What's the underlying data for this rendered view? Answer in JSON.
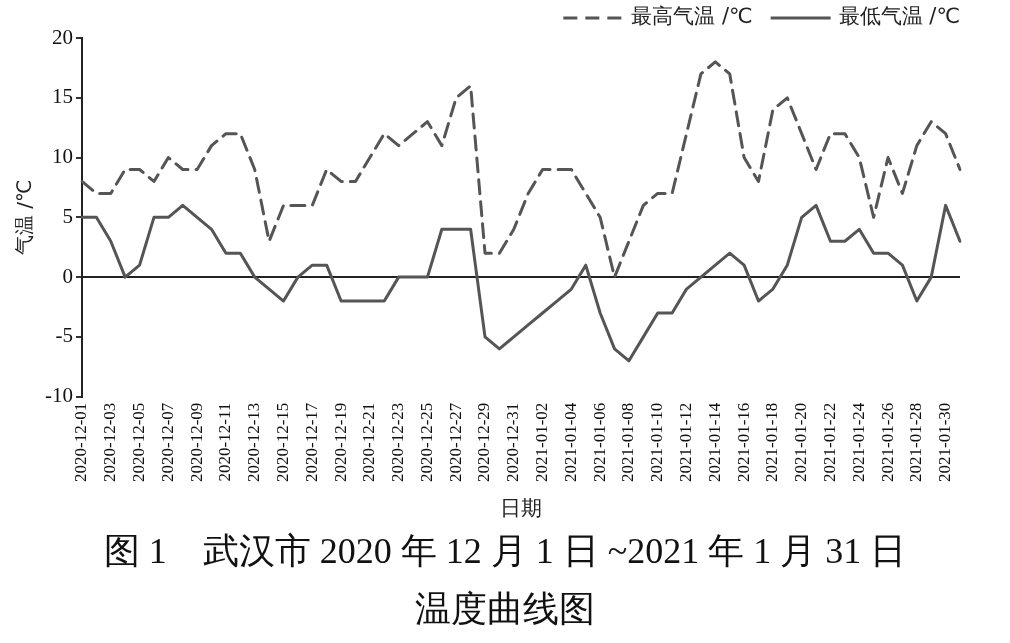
{
  "chart_data": {
    "type": "line",
    "title": "图 1　武汉市 2020 年 12 月 1 日 ~2021 年 1 月 31 日温度曲线图",
    "xlabel": "日期",
    "ylabel": "气温 /℃",
    "categories": [
      "2020-12-01",
      null,
      "2020-12-03",
      null,
      "2020-12-05",
      null,
      "2020-12-07",
      null,
      "2020-12-09",
      null,
      "2020-12-11",
      null,
      "2020-12-13",
      null,
      "2020-12-15",
      null,
      "2020-12-17",
      null,
      "2020-12-19",
      null,
      "2020-12-21",
      null,
      "2020-12-23",
      null,
      "2020-12-25",
      null,
      "2020-12-27",
      null,
      "2020-12-29",
      null,
      "2020-12-31",
      null,
      "2021-01-02",
      null,
      "2021-01-04",
      null,
      "2021-01-06",
      null,
      "2021-01-08",
      null,
      "2021-01-10",
      null,
      "2021-01-12",
      null,
      "2021-01-14",
      null,
      "2021-01-16",
      null,
      "2021-01-18",
      null,
      "2021-01-20",
      null,
      "2021-01-22",
      null,
      "2021-01-24",
      null,
      "2021-01-26",
      null,
      "2021-01-28",
      null,
      "2021-01-30",
      null
    ],
    "series": [
      {
        "name": "最高气温 /℃",
        "color": "#555555",
        "line_style": "dashed",
        "values": [
          8,
          7,
          7,
          9,
          9,
          8,
          10,
          9,
          9,
          11,
          12,
          12,
          9,
          3,
          6,
          6,
          6,
          9,
          8,
          8,
          10,
          12,
          11,
          12,
          13,
          11,
          15,
          16,
          2,
          2,
          4,
          7,
          9,
          9,
          9,
          7,
          5,
          0,
          3,
          6,
          7,
          7,
          12,
          17,
          18,
          17,
          10,
          8,
          14,
          15,
          12,
          9,
          12,
          12,
          10,
          5,
          10,
          7,
          11,
          13,
          12,
          9
        ]
      },
      {
        "name": "最低气温 /℃",
        "color": "#555555",
        "line_style": "solid",
        "values": [
          5,
          5,
          3,
          0,
          1,
          5,
          5,
          6,
          5,
          4,
          2,
          2,
          0,
          -1,
          -2,
          0,
          1,
          1,
          -2,
          -2,
          -2,
          -2,
          0,
          0,
          0,
          4,
          4,
          4,
          -5,
          -6,
          -5,
          -4,
          -3,
          -2,
          -1,
          1,
          -3,
          -6,
          -7,
          -5,
          -3,
          -3,
          -1,
          0,
          1,
          2,
          1,
          -2,
          -1,
          1,
          5,
          6,
          3,
          3,
          4,
          2,
          2,
          1,
          -2,
          0,
          6,
          3
        ]
      }
    ],
    "ylim": [
      -10,
      20
    ],
    "yticks": [
      -10,
      -5,
      0,
      5,
      10,
      15,
      20
    ],
    "grid": false,
    "ref_lines": [
      {
        "axis": "y",
        "value": 0
      }
    ],
    "legend": "top right",
    "marker": "none"
  }
}
